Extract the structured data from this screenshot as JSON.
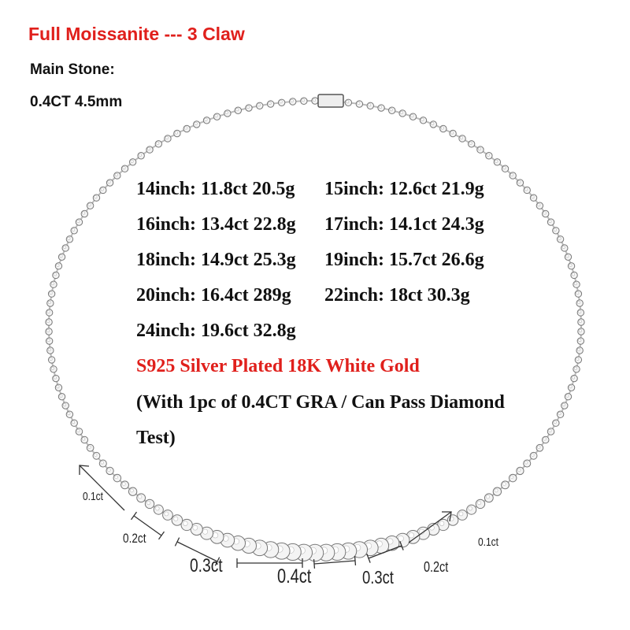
{
  "title": "Full Moissanite --- 3 Claw",
  "main_stone_label": "Main Stone:",
  "main_stone_value": "0.4CT 4.5mm",
  "sizes": [
    "14inch: 11.8ct 20.5g",
    "15inch: 12.6ct 21.9g",
    "16inch: 13.4ct 22.8g",
    "17inch: 14.1ct 24.3g",
    "18inch: 14.9ct 25.3g",
    "19inch: 15.7ct 26.6g",
    "20inch: 16.4ct 289g",
    "22inch: 18ct 30.3g",
    "24inch: 19.6ct 32.8g"
  ],
  "material": "S925 Silver Plated 18K White Gold",
  "note_line1": "(With 1pc of 0.4CT GRA / Can Pass Diamond",
  "note_line2": "Test)",
  "stone_labels": [
    "0.1ct",
    "0.2ct",
    "0.3ct",
    "0.4ct",
    "0.3ct",
    "0.2ct",
    "0.1ct"
  ],
  "colors": {
    "title": "#e0201c",
    "material": "#e0201c",
    "text": "#111111"
  }
}
